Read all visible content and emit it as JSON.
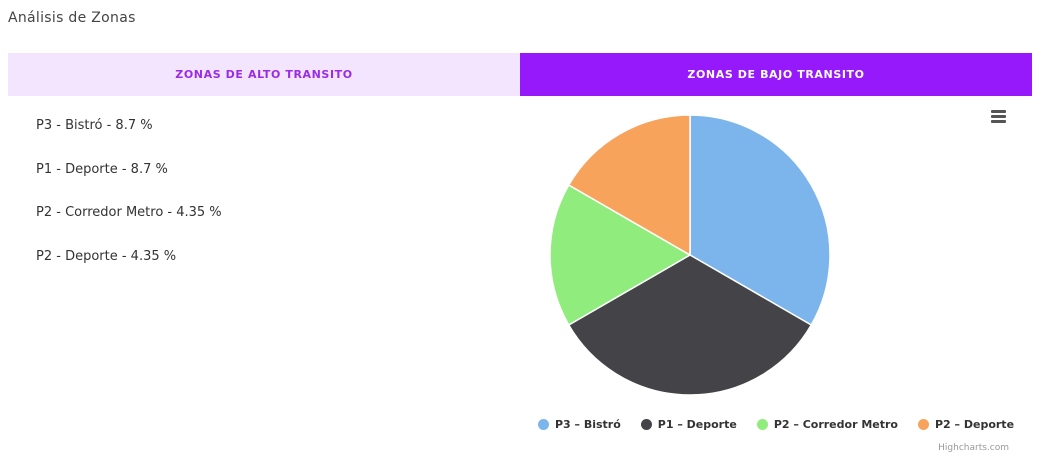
{
  "page": {
    "title": "Análisis de Zonas"
  },
  "tabs": [
    {
      "label": "ZONAS DE ALTO TRANSITO",
      "active": false
    },
    {
      "label": "ZONAS DE BAJO TRANSITO",
      "active": true
    }
  ],
  "zone_list": [
    "P3 - Bistró - 8.7 %",
    "P1 - Deporte - 8.7 %",
    "P2 - Corredor Metro - 4.35 %",
    "P2 - Deporte - 4.35 %"
  ],
  "chart_menu_icon": "hamburger-menu-icon",
  "chart_credits": "Highcharts.com",
  "chart_data": {
    "type": "pie",
    "series": [
      {
        "name": "P3 – Bistró",
        "value": 8.7,
        "color": "#7cb5ec"
      },
      {
        "name": "P1 – Deporte",
        "value": 8.7,
        "color": "#434348"
      },
      {
        "name": "P2 – Corredor Metro",
        "value": 4.35,
        "color": "#90ed7d"
      },
      {
        "name": "P2 – Deporte",
        "value": 4.35,
        "color": "#f7a35c"
      }
    ],
    "legend": "bottom-center",
    "title": ""
  }
}
